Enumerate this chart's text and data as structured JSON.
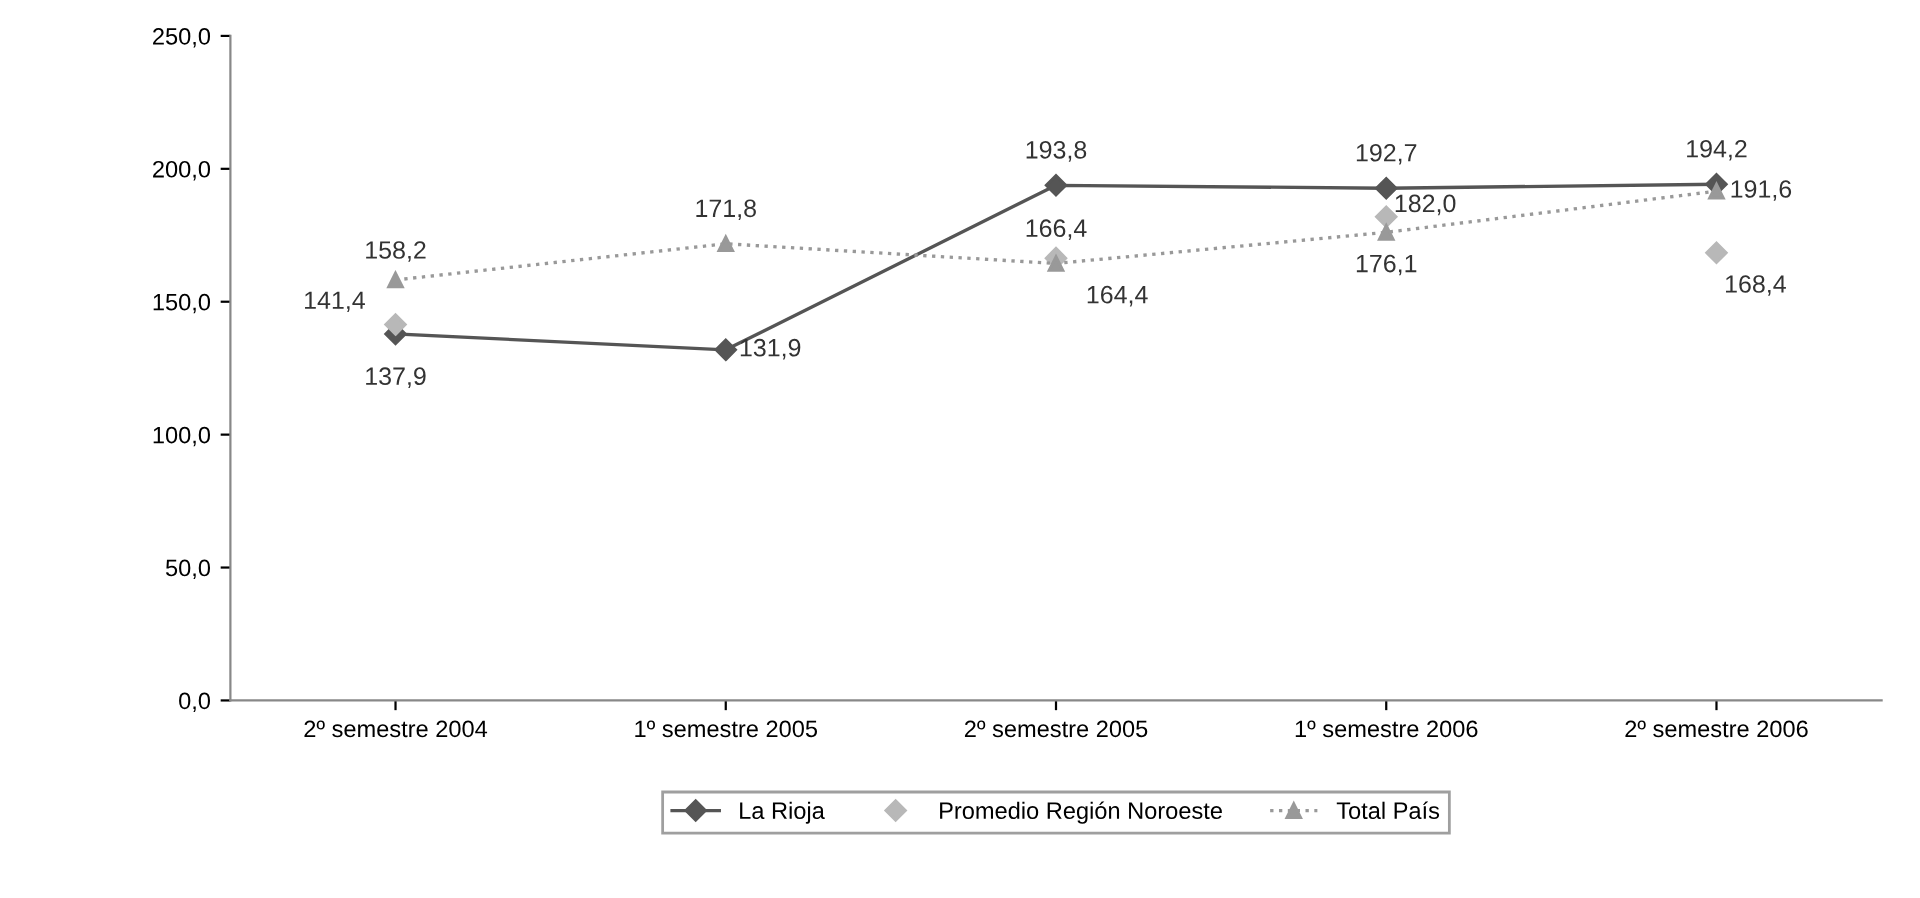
{
  "chart_data": {
    "type": "line",
    "categories": [
      "2º semestre 2004",
      "1º semestre 2005",
      "2º semestre 2005",
      "1º semestre 2006",
      "2º semestre 2006"
    ],
    "series": [
      {
        "name": "La Rioja",
        "color": "#555555",
        "values": [
          137.9,
          131.9,
          193.8,
          192.7,
          194.2
        ],
        "marker": "diamond",
        "line_style": "solid",
        "value_labels": [
          "137,9",
          "131,9",
          "193,8",
          "192,7",
          "194,2"
        ]
      },
      {
        "name": "Promedio Región Noroeste",
        "color": "#b8b8b8",
        "type": "scatter",
        "values": [
          141.4,
          null,
          166.4,
          182.0,
          168.4
        ],
        "marker": "diamond",
        "value_labels": [
          "141,4",
          null,
          "166,4",
          "182,0",
          "168,4"
        ]
      },
      {
        "name": "Total País",
        "color": "#999999",
        "values": [
          158.2,
          171.8,
          164.4,
          176.1,
          191.6
        ],
        "marker": "triangle",
        "line_style": "dotted",
        "value_labels": [
          "158,2",
          "171,8",
          "164,4",
          "176,1",
          "191,6"
        ]
      }
    ],
    "ylim": [
      0,
      250
    ],
    "yticks": [
      {
        "value": 0,
        "label": "0,0"
      },
      {
        "value": 50,
        "label": "50,0"
      },
      {
        "value": 100,
        "label": "100,0"
      },
      {
        "value": 150,
        "label": "150,0"
      },
      {
        "value": 200,
        "label": "200,0"
      },
      {
        "value": 250,
        "label": "250,0"
      }
    ],
    "grid": false,
    "legend": "bottom"
  }
}
